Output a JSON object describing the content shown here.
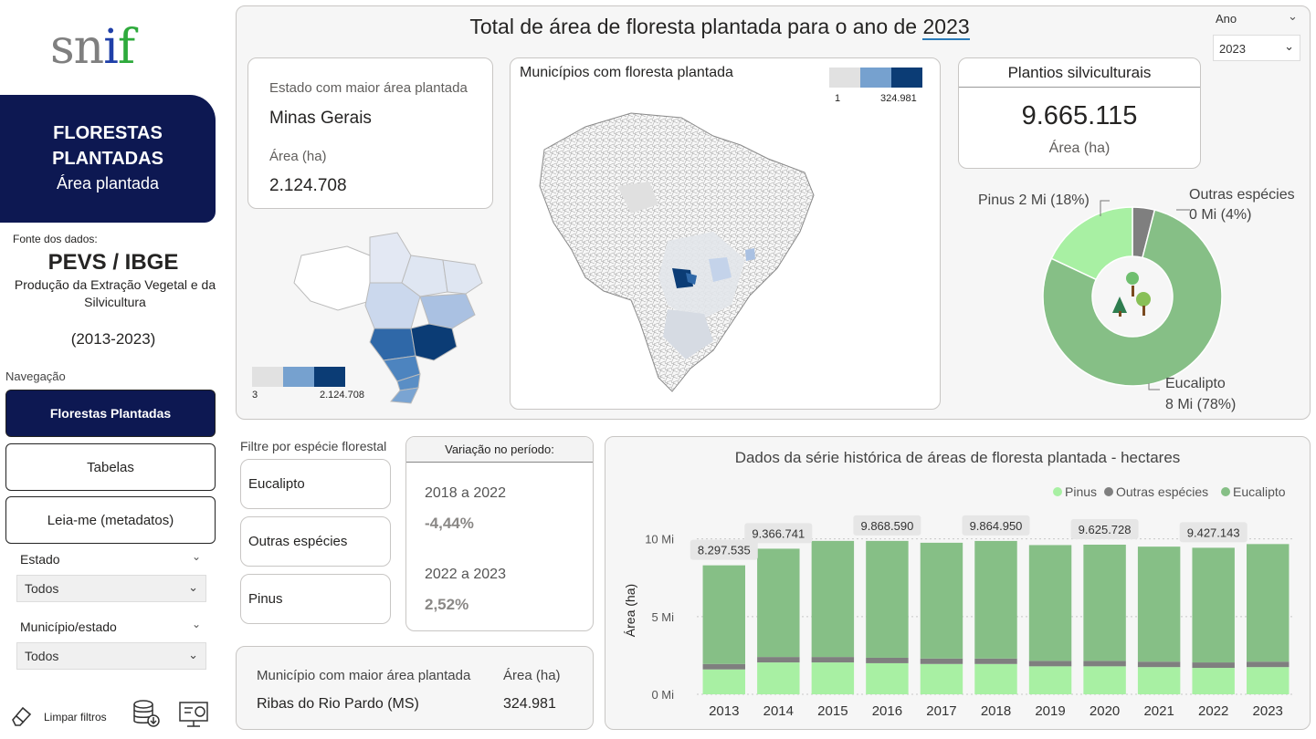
{
  "sidebar": {
    "logo_s": "sn",
    "logo_i": "i",
    "logo_f": "f",
    "hero_title_1": "FLORESTAS",
    "hero_title_2": "PLANTADAS",
    "hero_subtitle": "Área plantada",
    "source_label": "Fonte dos dados:",
    "source_title": "PEVS / IBGE",
    "source_desc": "Produção da Extração Vegetal e da Silvicultura",
    "source_years": "(2013-2023)",
    "nav_label": "Navegação",
    "nav": [
      "Florestas Plantadas",
      "Tabelas",
      "Leia-me (metadatos)"
    ],
    "filters": [
      {
        "label": "Estado",
        "value": "Todos"
      },
      {
        "label": "Município/estado",
        "value": "Todos"
      }
    ],
    "clear_filters": "Limpar filtros"
  },
  "header": {
    "title_prefix": "Total de área de floresta plantada para o ano de ",
    "title_year": "2023",
    "year_filter_label": "Ano",
    "year_filter_value": "2023"
  },
  "state_card": {
    "label": "Estado com maior área plantada",
    "state": "Minas Gerais",
    "area_label": "Área (ha)",
    "area_value": "2.124.708",
    "legend_min": "3",
    "legend_max": "2.124.708"
  },
  "municipality_map": {
    "title": "Municípios com floresta plantada",
    "legend_min": "1",
    "legend_max": "324.981"
  },
  "kpi": {
    "title": "Plantios silviculturais",
    "value": "9.665.115",
    "unit": "Área (ha)"
  },
  "donut": {
    "labels": {
      "pinus": "Pinus 2 Mi (18%)",
      "outras_1": "Outras espécies",
      "outras_2": "0 Mi (4%)",
      "euc_1": "Eucalipto",
      "euc_2": "8 Mi (78%)"
    },
    "slices": [
      {
        "name": "Eucalipto",
        "percent": 78,
        "color": "#86bf86"
      },
      {
        "name": "Pinus",
        "percent": 18,
        "color": "#a8f0a3"
      },
      {
        "name": "Outras espécies",
        "percent": 4,
        "color": "#7f7f7f"
      }
    ]
  },
  "species_filter": {
    "label": "Filtre por espécie florestal",
    "options": [
      "Eucalipto",
      "Outras espécies",
      "Pinus"
    ]
  },
  "variation": {
    "title": "Variação no período:",
    "p1_label": "2018 a 2022",
    "p1_value": "-4,44%",
    "p2_label": "2022 a 2023",
    "p2_value": "2,52%"
  },
  "top_municipality": {
    "label": "Município com maior área plantada",
    "name": "Ribas do Rio Pardo (MS)",
    "area_label": "Área (ha)",
    "area_value": "324.981"
  },
  "chart_data": {
    "type": "bar",
    "stacked": true,
    "title": "Dados da série histórica de áreas de floresta plantada - hectares",
    "xlabel": "",
    "ylabel": "Área (ha)",
    "ylim": [
      0,
      10800000
    ],
    "yticks": [
      {
        "value": 0,
        "label": "0 Mi"
      },
      {
        "value": 5000000,
        "label": "5 Mi"
      },
      {
        "value": 10000000,
        "label": "10 Mi"
      }
    ],
    "legend_position": "top-right",
    "categories": [
      "2013",
      "2014",
      "2015",
      "2016",
      "2017",
      "2018",
      "2019",
      "2020",
      "2021",
      "2022",
      "2023"
    ],
    "series": [
      {
        "name": "Pinus",
        "color": "#a8f0a3",
        "values": [
          1600000,
          2050000,
          2050000,
          2000000,
          1950000,
          1950000,
          1800000,
          1800000,
          1750000,
          1700000,
          1750000
        ]
      },
      {
        "name": "Outras espécies",
        "color": "#7f7f7f",
        "values": [
          350000,
          350000,
          350000,
          350000,
          350000,
          350000,
          350000,
          350000,
          350000,
          350000,
          350000
        ]
      },
      {
        "name": "Eucalipto",
        "color": "#86bf86",
        "values": [
          6347535,
          6966741,
          7468590,
          7518590,
          7450000,
          7564950,
          7450000,
          7475728,
          7400000,
          7377143,
          7565115
        ]
      }
    ],
    "totals": [
      8297535,
      9366741,
      9868590,
      9868590,
      9750000,
      9864950,
      9600000,
      9625728,
      9500000,
      9427143,
      9665115
    ],
    "data_labels": [
      {
        "index": 0,
        "text": "8.297.535"
      },
      {
        "index": 1,
        "text": "9.366.741"
      },
      {
        "index": 3,
        "text": "9.868.590"
      },
      {
        "index": 5,
        "text": "9.864.950"
      },
      {
        "index": 7,
        "text": "9.625.728"
      },
      {
        "index": 9,
        "text": "9.427.143"
      }
    ]
  }
}
